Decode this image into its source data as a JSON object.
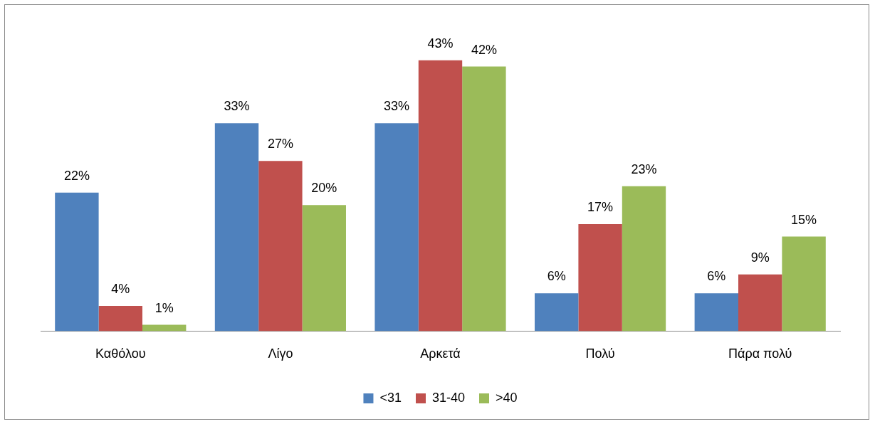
{
  "chart_data": {
    "type": "bar",
    "categories": [
      "Καθόλου",
      "Λίγο",
      "Αρκετά",
      "Πολύ",
      "Πάρα πολύ"
    ],
    "series": [
      {
        "name": "<31",
        "color": "#4f81bd",
        "values": [
          22,
          33,
          33,
          6,
          6
        ],
        "value_labels": [
          "22%",
          "33%",
          "33%",
          "6%",
          "6%"
        ]
      },
      {
        "name": "31-40",
        "color": "#c0504d",
        "values": [
          4,
          27,
          43,
          17,
          9
        ],
        "value_labels": [
          "4%",
          "27%",
          "43%",
          "17%",
          "9%"
        ]
      },
      {
        "name": ">40",
        "color": "#9bbb59",
        "values": [
          1,
          20,
          42,
          23,
          15
        ],
        "value_labels": [
          "1%",
          "20%",
          "42%",
          "23%",
          "15%"
        ]
      }
    ],
    "grid": false,
    "legend": "bottom"
  }
}
